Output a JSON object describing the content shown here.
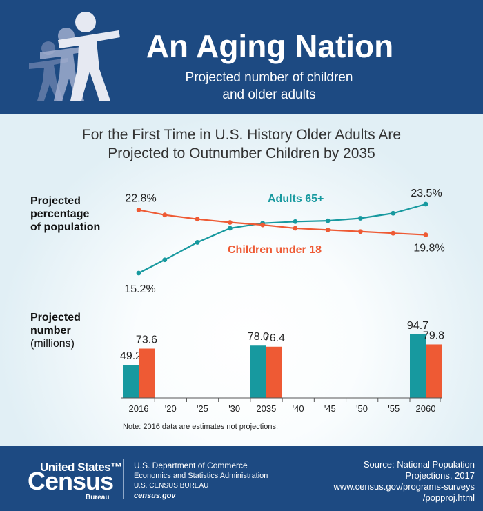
{
  "header": {
    "title": "An Aging Nation",
    "subtitle_line1": "Projected number of children",
    "subtitle_line2": "and older adults"
  },
  "headline": {
    "line1": "For the First Time in U.S. History Older Adults Are",
    "line2": "Projected to Outnumber Children by 2035"
  },
  "labels": {
    "pct_line1": "Projected",
    "pct_line2": "percentage",
    "pct_line3": "of population",
    "num_line1": "Projected",
    "num_line2": "number",
    "num_line3": "(millions)"
  },
  "note": "Note: 2016 data are estimates not projections.",
  "footer": {
    "logo_line1": "United States™",
    "logo_line2": "Census",
    "logo_line3": "Bureau",
    "dept_line1": "U.S. Department of Commerce",
    "dept_line2": "Economics and Statistics Administration",
    "dept_line3": "U.S. CENSUS BUREAU",
    "dept_line4": "census.gov",
    "source_line1": "Source: National Population",
    "source_line2": "Projections, 2017",
    "source_line3": "www.census.gov/programs-surveys",
    "source_line4": "/popproj.html"
  },
  "colors": {
    "adults": "#17999f",
    "children": "#ee5a34",
    "navy": "#1d4a82"
  },
  "chart_data": [
    {
      "type": "line",
      "x": [
        2016,
        2020,
        2025,
        2030,
        2035,
        2040,
        2045,
        2050,
        2055,
        2060
      ],
      "series": [
        {
          "name": "Adults 65+",
          "values": [
            15.2,
            16.8,
            18.9,
            20.6,
            21.2,
            21.4,
            21.5,
            21.8,
            22.4,
            23.5
          ]
        },
        {
          "name": "Children under 18",
          "values": [
            22.8,
            22.2,
            21.7,
            21.3,
            21.0,
            20.6,
            20.4,
            20.2,
            20.0,
            19.8
          ]
        }
      ],
      "value_labels": {
        "adults_first": "15.2%",
        "adults_last": "23.5%",
        "children_first": "22.8%",
        "children_last": "19.8%"
      },
      "ylim": [
        14,
        25
      ]
    },
    {
      "type": "bar",
      "x_ticks": [
        "2016",
        "'20",
        "'25",
        "'30",
        "2035",
        "'40",
        "'45",
        "'50",
        "'55",
        "2060"
      ],
      "categories": [
        "2016",
        "2035",
        "2060"
      ],
      "series": [
        {
          "name": "Adults 65+",
          "values": [
            49.2,
            78.0,
            94.7
          ],
          "labels": [
            "49.2",
            "78.0",
            "94.7"
          ]
        },
        {
          "name": "Children under 18",
          "values": [
            73.6,
            76.4,
            79.8
          ],
          "labels": [
            "73.6",
            "76.4",
            "79.8"
          ]
        }
      ],
      "ylim": [
        0,
        100
      ]
    }
  ]
}
